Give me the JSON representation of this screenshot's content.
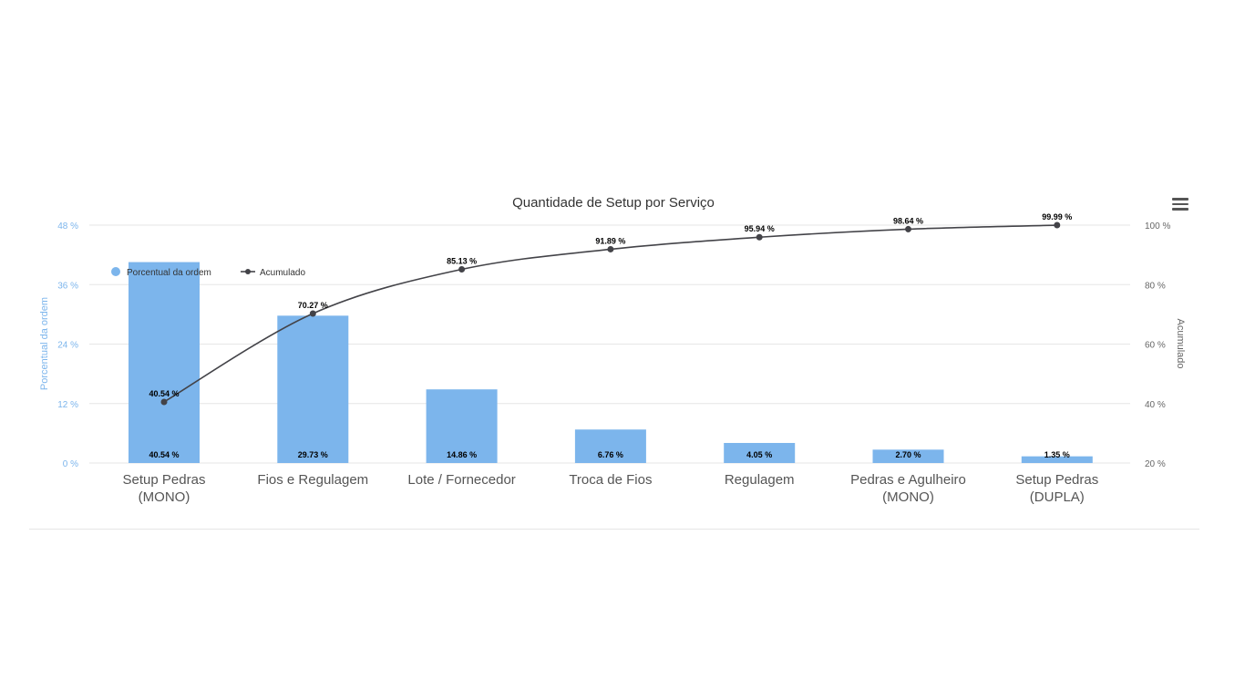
{
  "menu_icon": "hamburger-icon",
  "chart_data": {
    "type": "bar+line",
    "title": "Quantidade de Setup por Serviço",
    "categories": [
      [
        "Setup Pedras",
        "(MONO)"
      ],
      [
        "Fios e Regulagem"
      ],
      [
        "Lote / Fornecedor"
      ],
      [
        "Troca de Fios"
      ],
      [
        "Regulagem"
      ],
      [
        "Pedras e Agulheiro",
        "(MONO)"
      ],
      [
        "Setup Pedras",
        "(DUPLA)"
      ]
    ],
    "series": [
      {
        "name": "Porcentual da ordem",
        "kind": "bar",
        "axis": "left",
        "color": "#7cb5ec",
        "values": [
          40.54,
          29.73,
          14.86,
          6.76,
          4.05,
          2.7,
          1.35
        ],
        "labels": [
          "40.54 %",
          "29.73 %",
          "14.86 %",
          "6.76 %",
          "4.05 %",
          "2.70 %",
          "1.35 %"
        ]
      },
      {
        "name": "Acumulado",
        "kind": "line",
        "axis": "right",
        "color": "#434348",
        "values": [
          40.54,
          70.27,
          85.13,
          91.89,
          95.94,
          98.64,
          99.99
        ],
        "labels": [
          "40.54 %",
          "70.27 %",
          "85.13 %",
          "91.89 %",
          "95.94 %",
          "98.64 %",
          "99.99 %"
        ]
      }
    ],
    "y_left": {
      "label": "Porcentual da ordem",
      "min": 0,
      "max": 48,
      "ticks": [
        0,
        12,
        24,
        36,
        48
      ],
      "tick_labels": [
        "0 %",
        "12 %",
        "24 %",
        "36 %",
        "48 %"
      ],
      "color": "#7cb5ec"
    },
    "y_right": {
      "label": "Acumulado",
      "min": 20,
      "max": 100,
      "ticks": [
        20,
        40,
        60,
        80,
        100
      ],
      "tick_labels": [
        "20 %",
        "40 %",
        "60 %",
        "80 %",
        "100 %"
      ],
      "color": "#666666"
    },
    "grid": true,
    "legend": {
      "placement": "top-left",
      "items": [
        "Porcentual da ordem",
        "Acumulado"
      ]
    }
  }
}
